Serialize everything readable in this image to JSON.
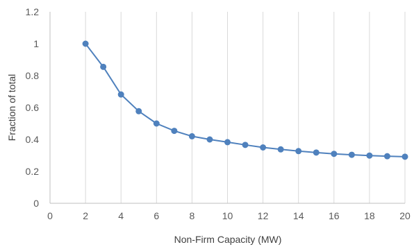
{
  "chart_data": {
    "type": "line",
    "title": "",
    "xlabel": "Non-Firm Capacity (MW)",
    "ylabel": "Fraction of total",
    "xlim": [
      0,
      20
    ],
    "ylim": [
      0,
      1.2
    ],
    "x_ticks": [
      "0",
      "2",
      "4",
      "6",
      "8",
      "10",
      "12",
      "14",
      "16",
      "18",
      "20"
    ],
    "y_ticks": [
      "0",
      "0.2",
      "0.4",
      "0.6",
      "0.8",
      "1",
      "1.2"
    ],
    "grid": "vertical-only",
    "series": [
      {
        "color": "#4f81bd",
        "marker": "circle",
        "x": [
          2,
          3,
          4,
          5,
          6,
          7,
          8,
          9,
          10,
          11,
          12,
          13,
          14,
          15,
          16,
          17,
          18,
          19,
          20
        ],
        "y": [
          1.0,
          0.855,
          0.682,
          0.577,
          0.5,
          0.454,
          0.42,
          0.4,
          0.383,
          0.366,
          0.35,
          0.338,
          0.327,
          0.318,
          0.31,
          0.304,
          0.299,
          0.295,
          0.292
        ]
      }
    ]
  }
}
